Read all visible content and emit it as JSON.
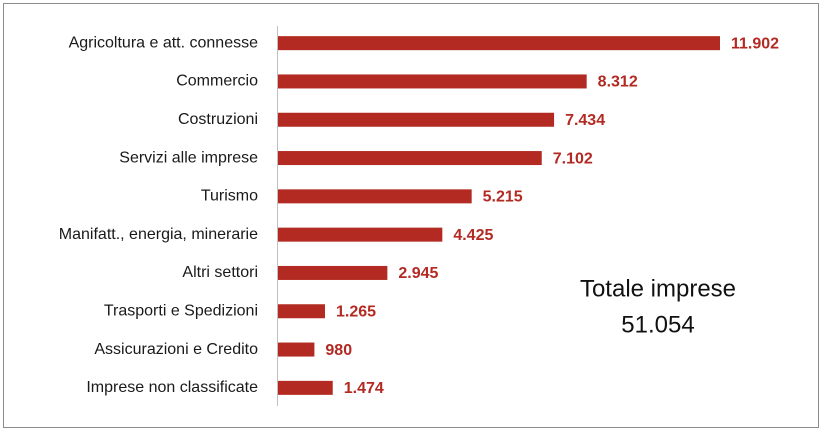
{
  "chart_data": {
    "type": "bar",
    "orientation": "horizontal",
    "categories": [
      "Agricoltura e att. connesse",
      "Commercio",
      "Costruzioni",
      "Servizi alle imprese",
      "Turismo",
      "Manifatt., energia, minerarie",
      "Altri settori",
      "Trasporti e Spedizioni",
      "Assicurazioni e Credito",
      "Imprese non classificate"
    ],
    "values": [
      11902,
      8312,
      7434,
      7102,
      5215,
      4425,
      2945,
      1265,
      980,
      1474
    ],
    "value_labels": [
      "11.902",
      "8.312",
      "7.434",
      "7.102",
      "5.215",
      "4.425",
      "2.945",
      "1.265",
      "980",
      "1.474"
    ],
    "color": "#b22a22",
    "annotation": [
      "Totale imprese",
      "51.054"
    ]
  }
}
